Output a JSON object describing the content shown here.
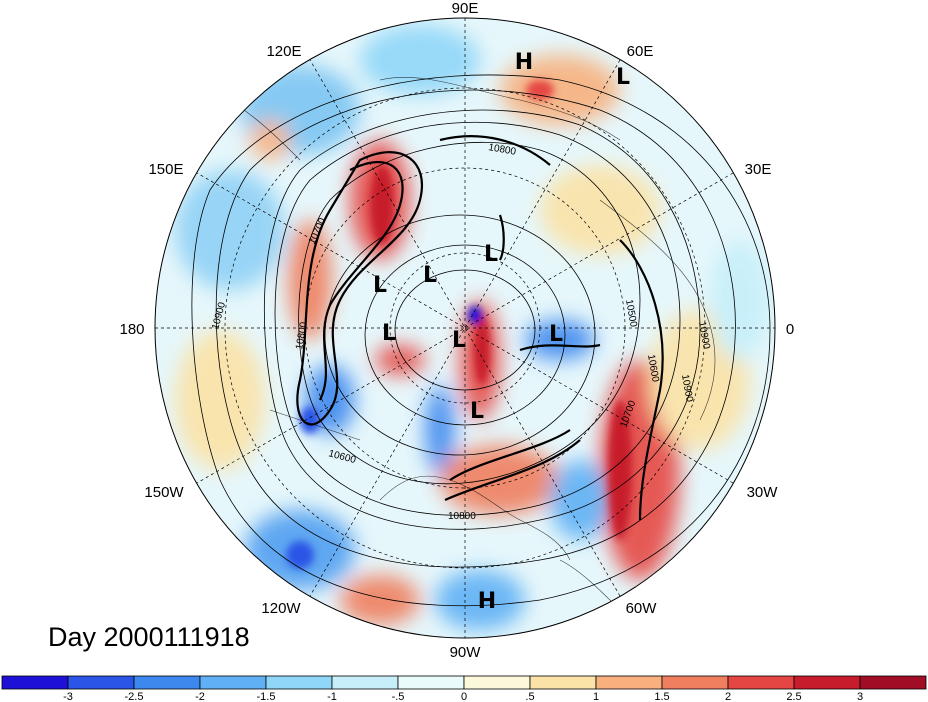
{
  "map": {
    "projection": "north-polar-stereographic",
    "longitude_labels": [
      "90E",
      "60E",
      "30E",
      "0",
      "30W",
      "60W",
      "90W",
      "120W",
      "150W",
      "180",
      "150E",
      "120E"
    ],
    "pressure_systems": [
      {
        "type": "H",
        "label": "H"
      },
      {
        "type": "L",
        "label": "L"
      },
      {
        "type": "L",
        "label": "L"
      },
      {
        "type": "L",
        "label": "L"
      },
      {
        "type": "L",
        "label": "L"
      },
      {
        "type": "L",
        "label": "L"
      },
      {
        "type": "L",
        "label": "L"
      },
      {
        "type": "L",
        "label": "L"
      },
      {
        "type": "L",
        "label": "L"
      },
      {
        "type": "H",
        "label": "H"
      }
    ],
    "contour_labels": [
      "10900",
      "10700",
      "10800",
      "10800",
      "10600",
      "10800",
      "10500",
      "10600",
      "10700",
      "10900",
      "10900"
    ],
    "date_label": "Day 2000111918"
  },
  "colorbar": {
    "tick_labels": [
      "-3",
      "-2.5",
      "-2",
      "-1.5",
      "-1",
      "-.5",
      "0",
      ".5",
      "1",
      "1.5",
      "2",
      "2.5",
      "3"
    ],
    "colors": [
      "#1f10d8",
      "#2b55e6",
      "#3d88ee",
      "#5fb0f4",
      "#8fd6f8",
      "#c6effa",
      "#e9fbfb",
      "#fbf8dc",
      "#fbe2a6",
      "#f7b07e",
      "#ef7f5e",
      "#e54643",
      "#c71c2c",
      "#a00d24"
    ]
  }
}
